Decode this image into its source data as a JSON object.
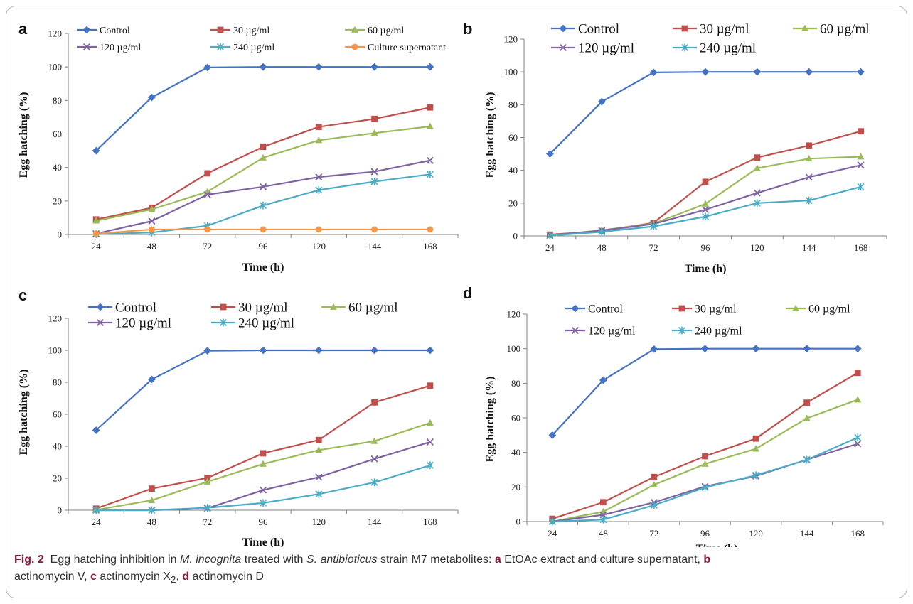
{
  "chart_data": [
    {
      "type": "line",
      "panel_label": "a",
      "x": [
        24,
        48,
        72,
        96,
        120,
        144,
        168
      ],
      "xlabel": "Time (h)",
      "ylabel": "Egg hatching (%)",
      "ylim": [
        0,
        120
      ],
      "yticks": [
        0,
        20,
        40,
        60,
        80,
        100,
        120
      ],
      "grid": false,
      "legend_placement": "top",
      "series": [
        {
          "name": "Control",
          "color": "#4472C4",
          "marker": "diamond",
          "values": [
            50,
            81.8,
            99.7,
            100,
            100,
            100,
            100
          ]
        },
        {
          "name": "30 µg/ml",
          "color": "#C0504D",
          "marker": "square",
          "values": [
            9,
            16,
            36.5,
            52.3,
            64.2,
            69,
            75.8
          ]
        },
        {
          "name": "60 µg/ml",
          "color": "#9BBB59",
          "marker": "triangle",
          "values": [
            8.2,
            15,
            25.5,
            45.8,
            56.2,
            60.5,
            64.5
          ]
        },
        {
          "name": "120 µg/ml",
          "color": "#8064A2",
          "marker": "x",
          "values": [
            0.5,
            8,
            23.8,
            28.5,
            34.3,
            37.5,
            44.2
          ]
        },
        {
          "name": "240 µg/ml",
          "color": "#4BACC6",
          "marker": "star",
          "values": [
            0.2,
            1.2,
            5.2,
            17.3,
            26.5,
            31.6,
            35.9
          ]
        },
        {
          "name": "Culture supernatant",
          "color": "#F79646",
          "marker": "circle",
          "values": [
            0.5,
            3,
            3,
            3,
            3,
            3,
            3
          ]
        }
      ]
    },
    {
      "type": "line",
      "panel_label": "b",
      "x": [
        24,
        48,
        72,
        96,
        120,
        144,
        168
      ],
      "xlabel": "Time (h)",
      "ylabel": "Egg hatching (%)",
      "ylim": [
        0,
        120
      ],
      "yticks": [
        0,
        20,
        40,
        60,
        80,
        100,
        120
      ],
      "grid": false,
      "legend_placement": "top",
      "series": [
        {
          "name": "Control",
          "color": "#4472C4",
          "marker": "diamond",
          "values": [
            50,
            81.8,
            99.7,
            100,
            100,
            100,
            100
          ]
        },
        {
          "name": "30 µg/ml",
          "color": "#C0504D",
          "marker": "square",
          "values": [
            0.8,
            3,
            8,
            33,
            47.8,
            55.1,
            63.8
          ]
        },
        {
          "name": "60 µg/ml",
          "color": "#9BBB59",
          "marker": "triangle",
          "values": [
            0.3,
            3.5,
            7.5,
            19.5,
            41.3,
            47.1,
            48.3
          ]
        },
        {
          "name": "120 µg/ml",
          "color": "#8064A2",
          "marker": "x",
          "values": [
            0.3,
            3.3,
            7.3,
            16,
            26.2,
            35.8,
            43.2
          ]
        },
        {
          "name": "240 µg/ml",
          "color": "#4BACC6",
          "marker": "star",
          "values": [
            0.2,
            2.5,
            5.8,
            11.8,
            20,
            21.6,
            29.9
          ]
        }
      ]
    },
    {
      "type": "line",
      "panel_label": "c",
      "x": [
        24,
        48,
        72,
        96,
        120,
        144,
        168
      ],
      "xlabel": "Time (h)",
      "ylabel": "Egg hatching (%)",
      "ylim": [
        0,
        120
      ],
      "yticks": [
        0,
        20,
        40,
        60,
        80,
        100,
        120
      ],
      "grid": false,
      "legend_placement": "top",
      "series": [
        {
          "name": "Control",
          "color": "#4472C4",
          "marker": "diamond",
          "values": [
            50,
            81.8,
            99.7,
            100,
            100,
            100,
            100
          ]
        },
        {
          "name": "30 µg/ml",
          "color": "#C0504D",
          "marker": "square",
          "values": [
            1,
            13.5,
            20.2,
            35.6,
            43.9,
            67.4,
            77.9
          ]
        },
        {
          "name": "60 µg/ml",
          "color": "#9BBB59",
          "marker": "triangle",
          "values": [
            0.2,
            6.2,
            17.8,
            28.9,
            37.6,
            43.2,
            54.6
          ]
        },
        {
          "name": "120 µg/ml",
          "color": "#8064A2",
          "marker": "x",
          "values": [
            0,
            0,
            1.2,
            12.6,
            20.7,
            32.1,
            42.7
          ]
        },
        {
          "name": "240 µg/ml",
          "color": "#4BACC6",
          "marker": "star",
          "values": [
            0,
            0,
            1.5,
            4.5,
            10.1,
            17.4,
            28.1
          ]
        }
      ]
    },
    {
      "type": "line",
      "panel_label": "d",
      "x": [
        24,
        48,
        72,
        96,
        120,
        144,
        168
      ],
      "xlabel": "Time (h)",
      "ylabel": "Egg hatching (%)",
      "ylim": [
        0,
        120
      ],
      "yticks": [
        0,
        20,
        40,
        60,
        80,
        100,
        120
      ],
      "grid": false,
      "legend_placement": "top",
      "series": [
        {
          "name": "Control",
          "color": "#4472C4",
          "marker": "diamond",
          "values": [
            50,
            81.8,
            99.7,
            100,
            100,
            100,
            100
          ]
        },
        {
          "name": "30 µg/ml",
          "color": "#C0504D",
          "marker": "square",
          "values": [
            1.6,
            11.2,
            25.8,
            37.8,
            48,
            68.8,
            86
          ]
        },
        {
          "name": "60 µg/ml",
          "color": "#9BBB59",
          "marker": "triangle",
          "values": [
            0,
            5.7,
            21.3,
            33.3,
            42.1,
            59.7,
            70.5
          ]
        },
        {
          "name": "120 µg/ml",
          "color": "#8064A2",
          "marker": "x",
          "values": [
            0,
            3.9,
            11.1,
            20.3,
            26.3,
            35.8,
            45
          ]
        },
        {
          "name": "240 µg/ml",
          "color": "#4BACC6",
          "marker": "star",
          "values": [
            0,
            1.1,
            9.5,
            19.7,
            26.8,
            35.7,
            48.6
          ]
        }
      ]
    }
  ],
  "caption": {
    "label": "Fig. 2",
    "text_before_italic": "Egg hatching inhibition in ",
    "species": "M. incognita",
    "text_treated": " treated with ",
    "strain_genus": "S. antibioticus",
    "text_metabolites": " strain M7 metabolites: ",
    "item_a_label": "a",
    "item_a_text": " EtOAc extract and culture supernatant, ",
    "item_b_label": "b",
    "item_b_text": " actinomycin V, ",
    "item_c_label": "c",
    "item_c_text": " actinomycin X",
    "item_c_sub": "2",
    "item_c_comma": ", ",
    "item_d_label": "d",
    "item_d_text": " actinomycin D"
  }
}
